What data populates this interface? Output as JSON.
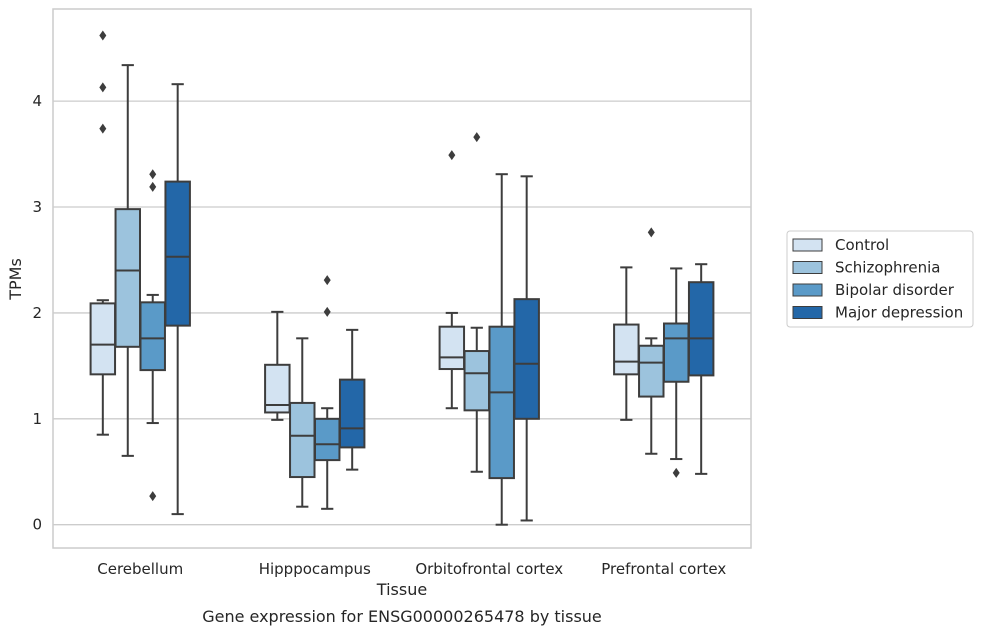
{
  "chart_data": {
    "type": "box",
    "xlabel": "Tissue",
    "ylabel": "TPMs",
    "caption": "Gene expression for ENSG00000265478 by tissue",
    "ylim": [
      -0.22,
      4.87
    ],
    "yticks": [
      0,
      1,
      2,
      3,
      4
    ],
    "grid": "horizontal",
    "legend_position": "right",
    "categories": [
      "Cerebellum",
      "Hipppocampus",
      "Orbitofrontal cortex",
      "Prefrontal cortex"
    ],
    "series": [
      {
        "name": "Control",
        "color": "#d3e3f2",
        "boxes": [
          {
            "whislo": 0.85,
            "q1": 1.42,
            "med": 1.7,
            "q3": 2.09,
            "whishi": 2.12,
            "fliers": [
              3.74,
              4.13,
              4.62
            ]
          },
          {
            "whislo": 0.99,
            "q1": 1.06,
            "med": 1.13,
            "q3": 1.51,
            "whishi": 2.01,
            "fliers": []
          },
          {
            "whislo": 1.1,
            "q1": 1.47,
            "med": 1.58,
            "q3": 1.87,
            "whishi": 2.0,
            "fliers": [
              3.49
            ]
          },
          {
            "whislo": 0.99,
            "q1": 1.42,
            "med": 1.54,
            "q3": 1.89,
            "whishi": 2.43,
            "fliers": []
          }
        ]
      },
      {
        "name": "Schizophrenia",
        "color": "#9cc3dd",
        "boxes": [
          {
            "whislo": 0.65,
            "q1": 1.68,
            "med": 2.4,
            "q3": 2.98,
            "whishi": 4.34,
            "fliers": []
          },
          {
            "whislo": 0.17,
            "q1": 0.45,
            "med": 0.84,
            "q3": 1.15,
            "whishi": 1.76,
            "fliers": []
          },
          {
            "whislo": 0.5,
            "q1": 1.08,
            "med": 1.43,
            "q3": 1.64,
            "whishi": 1.86,
            "fliers": [
              3.66
            ]
          },
          {
            "whislo": 0.67,
            "q1": 1.21,
            "med": 1.53,
            "q3": 1.69,
            "whishi": 1.76,
            "fliers": [
              2.76
            ]
          }
        ]
      },
      {
        "name": "Bipolar disorder",
        "color": "#5a9ac8",
        "boxes": [
          {
            "whislo": 0.96,
            "q1": 1.46,
            "med": 1.76,
            "q3": 2.1,
            "whishi": 2.17,
            "fliers": [
              0.27,
              3.19,
              3.31
            ]
          },
          {
            "whislo": 0.15,
            "q1": 0.61,
            "med": 0.76,
            "q3": 1.0,
            "whishi": 1.1,
            "fliers": [
              2.01,
              2.31
            ]
          },
          {
            "whislo": 0.0,
            "q1": 0.44,
            "med": 1.25,
            "q3": 1.87,
            "whishi": 3.31,
            "fliers": []
          },
          {
            "whislo": 0.62,
            "q1": 1.35,
            "med": 1.76,
            "q3": 1.9,
            "whishi": 2.42,
            "fliers": [
              0.49
            ]
          }
        ]
      },
      {
        "name": "Major depression",
        "color": "#2367a8",
        "boxes": [
          {
            "whislo": 0.1,
            "q1": 1.88,
            "med": 2.53,
            "q3": 3.24,
            "whishi": 4.16,
            "fliers": []
          },
          {
            "whislo": 0.52,
            "q1": 0.73,
            "med": 0.91,
            "q3": 1.37,
            "whishi": 1.84,
            "fliers": []
          },
          {
            "whislo": 0.04,
            "q1": 1.0,
            "med": 1.52,
            "q3": 2.13,
            "whishi": 3.29,
            "fliers": []
          },
          {
            "whislo": 0.48,
            "q1": 1.41,
            "med": 1.76,
            "q3": 2.29,
            "whishi": 2.46,
            "fliers": []
          }
        ]
      }
    ]
  }
}
